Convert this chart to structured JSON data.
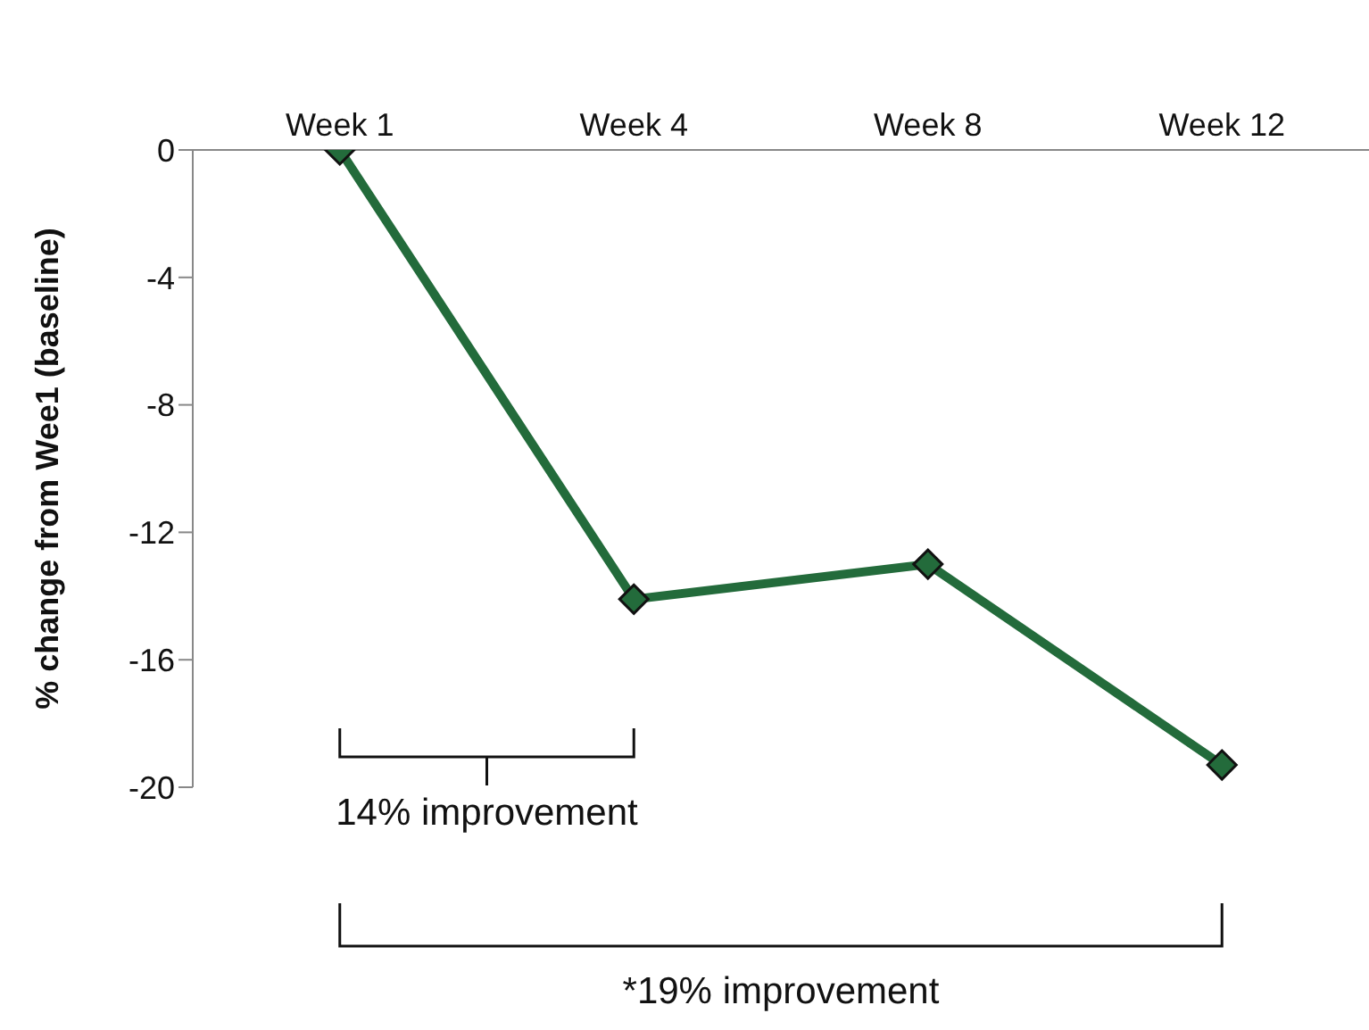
{
  "chart_data": {
    "type": "line",
    "ylabel": "% change from Wee1 (baseline)",
    "categories": [
      "Week 1",
      "Week 4",
      "Week 8",
      "Week 12"
    ],
    "series": [
      {
        "color": "#236b3b",
        "values": [
          0,
          -14.1,
          -13.0,
          -19.3
        ]
      }
    ],
    "ylim": [
      -20,
      0
    ],
    "yticks": [
      -20,
      -16,
      -12,
      -8,
      -4,
      0
    ],
    "grid": false,
    "legend": false,
    "marker": "diamond",
    "line_style": "solid",
    "annotations": [
      "14% improvement",
      "*19% improvement"
    ]
  }
}
